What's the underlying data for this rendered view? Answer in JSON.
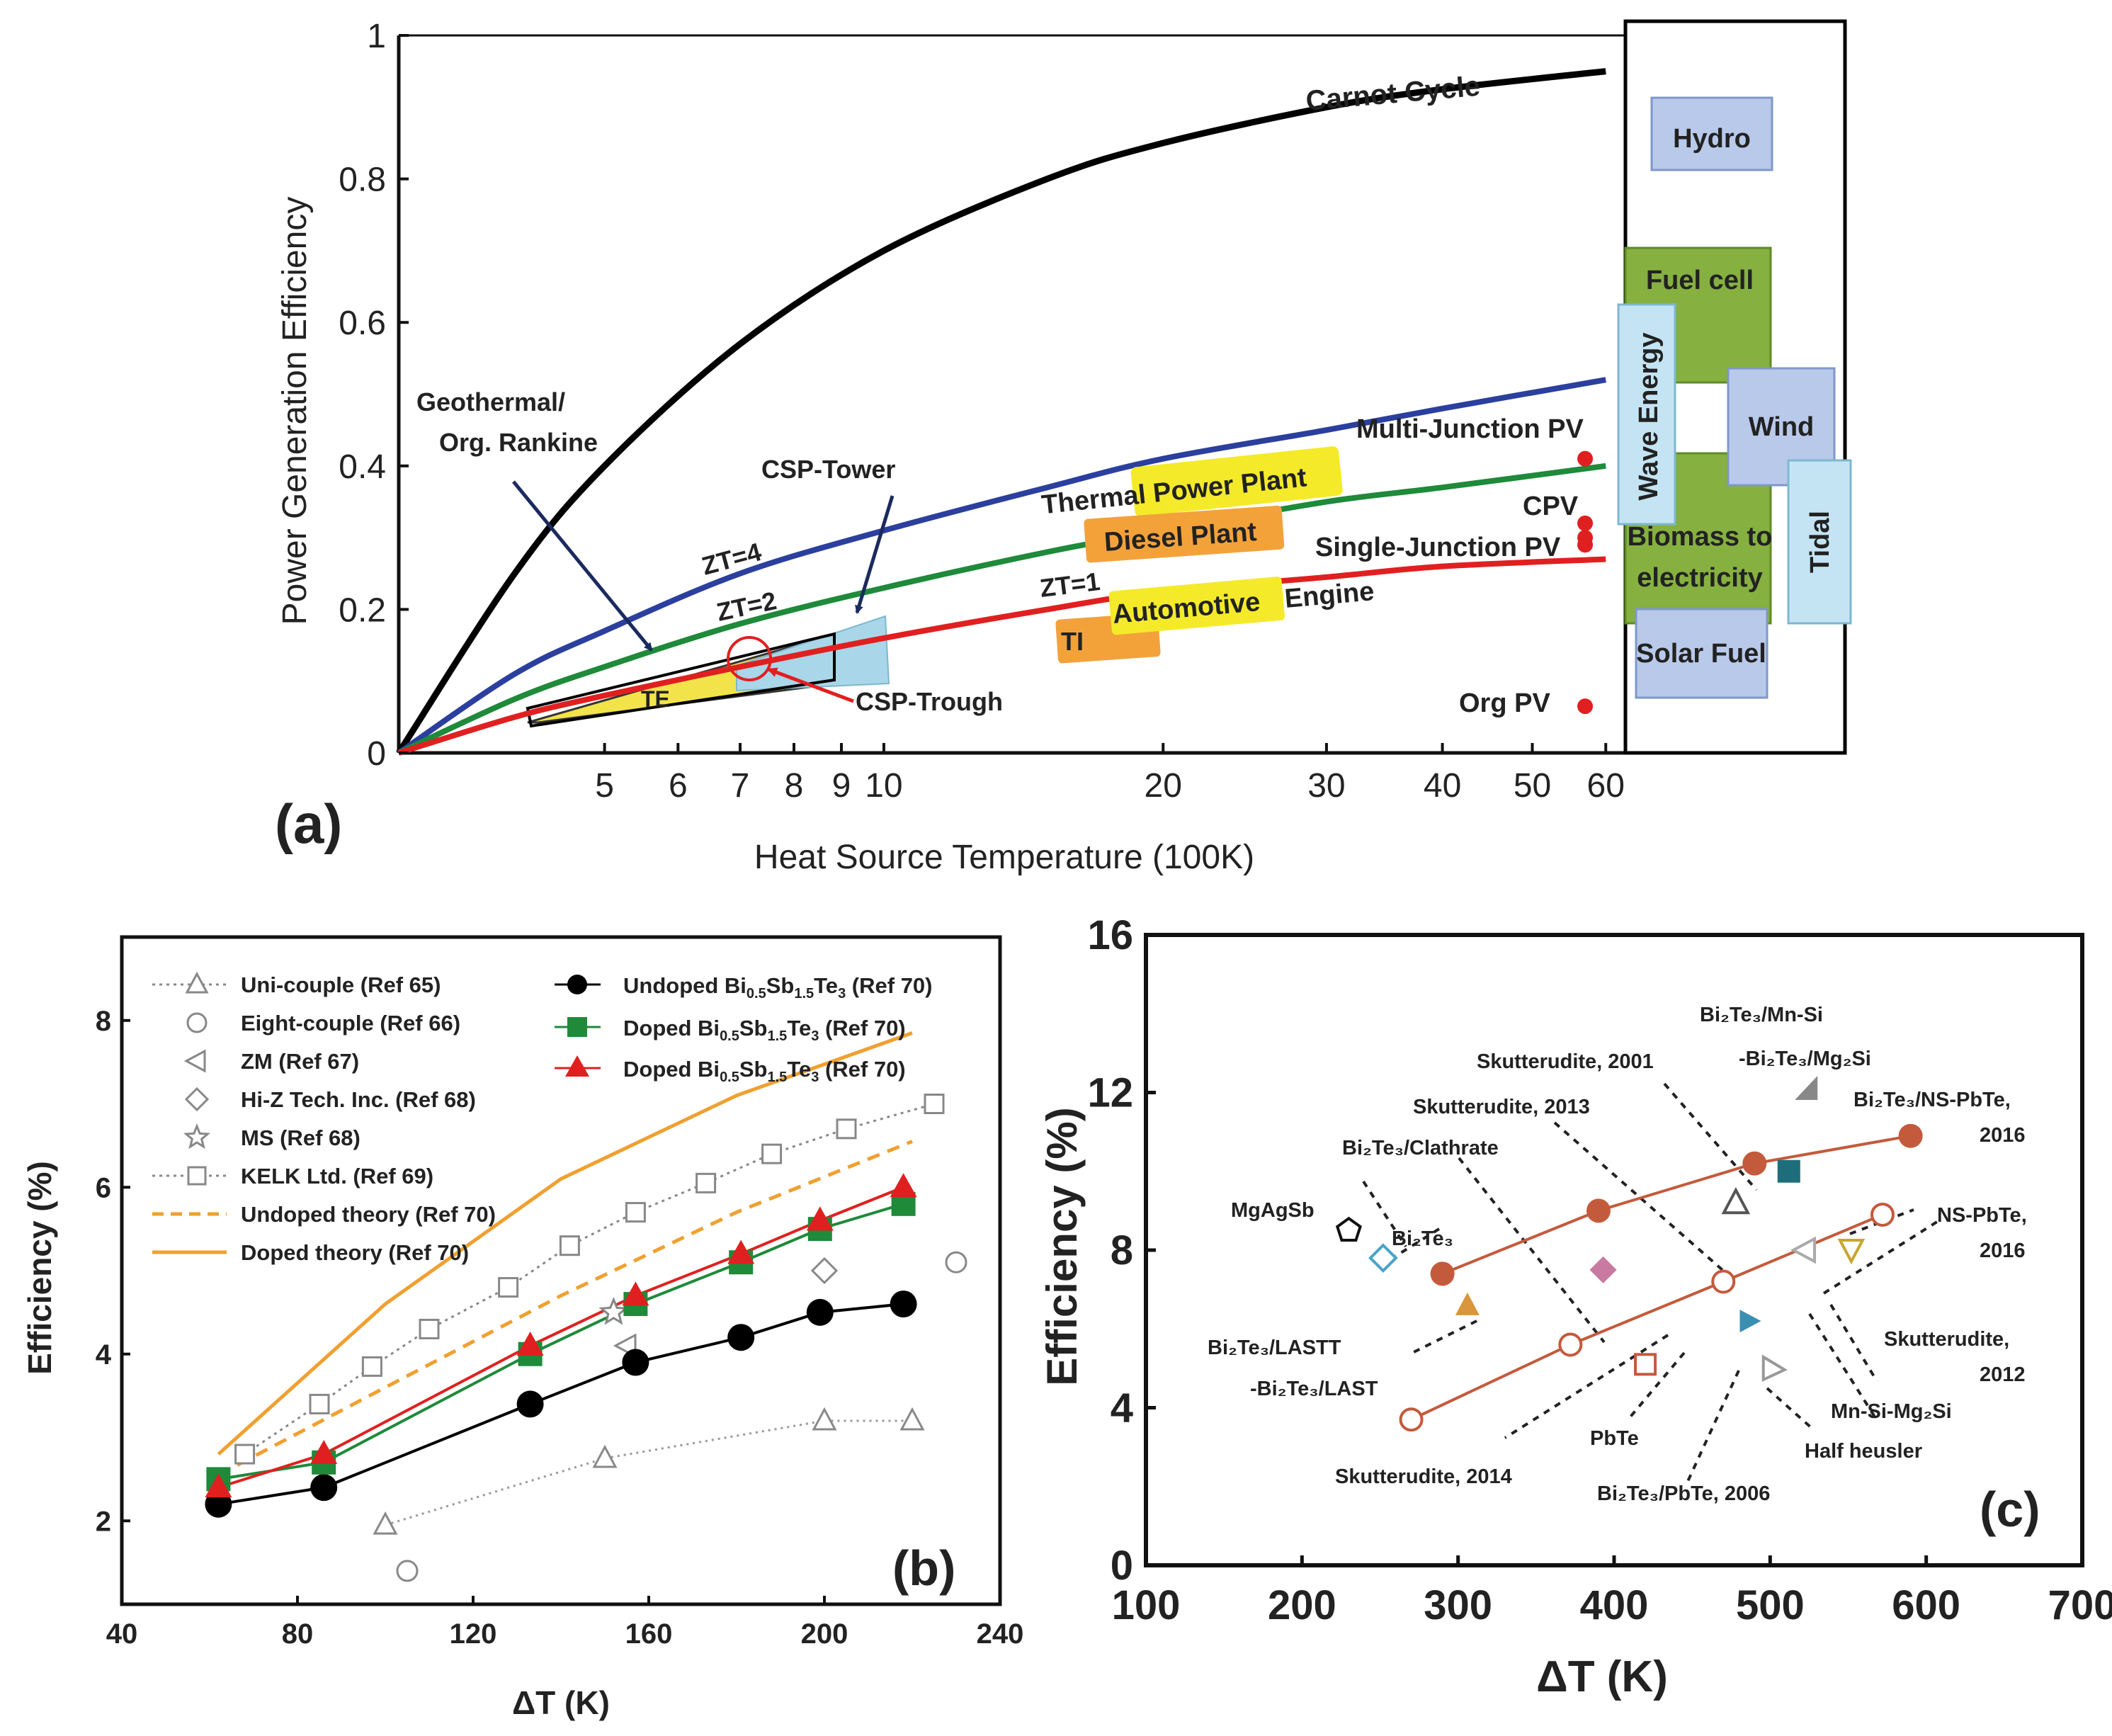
{
  "chart_data": [
    {
      "type": "line",
      "panel_label": "(a)",
      "xlabel": "Heat Source Temperature (100K)",
      "ylabel": "Power Generation Efficiency",
      "xscale": "log",
      "xlim": [
        3,
        63
      ],
      "ylim": [
        0,
        1
      ],
      "x_ticks": [
        "5",
        "6",
        "7",
        "8",
        "9",
        "10",
        "20",
        "30",
        "40",
        "50",
        "60"
      ],
      "y_ticks": [
        "0",
        "0.2",
        "0.4",
        "0.6",
        "0.8",
        "1"
      ],
      "series": [
        {
          "name": "Carnot Cycle",
          "color": "#000000",
          "x": [
            3,
            4,
            5,
            7,
            10,
            15,
            20,
            30,
            40,
            60
          ],
          "y": [
            0,
            0.25,
            0.4,
            0.57,
            0.7,
            0.8,
            0.85,
            0.9,
            0.925,
            0.95
          ]
        },
        {
          "name": "ZT=4",
          "color": "#2b3f9e",
          "x": [
            3,
            4,
            5,
            7,
            10,
            15,
            20,
            30,
            40,
            60
          ],
          "y": [
            0,
            0.11,
            0.17,
            0.25,
            0.31,
            0.37,
            0.41,
            0.45,
            0.48,
            0.52
          ]
        },
        {
          "name": "ZT=2",
          "color": "#1e8a3a",
          "x": [
            3,
            4,
            5,
            7,
            10,
            15,
            20,
            30,
            40,
            60
          ],
          "y": [
            0,
            0.075,
            0.12,
            0.18,
            0.23,
            0.28,
            0.31,
            0.35,
            0.37,
            0.4
          ]
        },
        {
          "name": "ZT=1",
          "color": "#e02020",
          "x": [
            3,
            4,
            5,
            7,
            10,
            15,
            20,
            30,
            40,
            60
          ],
          "y": [
            0,
            0.05,
            0.08,
            0.12,
            0.16,
            0.2,
            0.225,
            0.245,
            0.26,
            0.27
          ]
        }
      ],
      "points": [
        {
          "label": "Multi-Junction PV",
          "x": 57,
          "y": 0.41
        },
        {
          "label": "CPV",
          "x": 57,
          "y": 0.32
        },
        {
          "label": "CPV",
          "x": 57,
          "y": 0.3
        },
        {
          "label": "Single-Junction PV",
          "x": 57,
          "y": 0.29
        },
        {
          "label": "Org PV",
          "x": 57,
          "y": 0.065
        }
      ],
      "labels": {
        "carnot": "Carnot Cycle",
        "zt4": "ZT=4",
        "zt2": "ZT=2",
        "zt1": "ZT=1",
        "geo1": "Geothermal/",
        "geo2": "Org. Rankine",
        "csp_tower": "CSP-Tower",
        "csp_trough": "CSP-Trough",
        "te": "TE",
        "thermal": "Thermal Power Plant",
        "diesel": "Diesel Plant",
        "ti": "TI",
        "auto1": "Automotive",
        "auto2": "Engine",
        "mj_pv": "Multi-Junction PV",
        "cpv": "CPV",
        "sj_pv": "Single-Junction PV",
        "org_pv": "Org PV"
      },
      "side_boxes": {
        "hydro": "Hydro",
        "fuel_cell": "Fuel cell",
        "wave": "Wave Energy",
        "wind": "Wind",
        "biomass1": "Biomass to",
        "biomass2": "electricity",
        "tidal": "Tidal",
        "solar_fuel": "Solar Fuel"
      }
    },
    {
      "type": "line",
      "panel_label": "(b)",
      "xlabel": "ΔT (K)",
      "ylabel": "Efficiency (%)",
      "xlim": [
        40,
        240
      ],
      "ylim": [
        1,
        9
      ],
      "x_ticks": [
        "40",
        "80",
        "120",
        "160",
        "200",
        "240"
      ],
      "y_ticks": [
        "2",
        "4",
        "6",
        "8"
      ],
      "series": [
        {
          "name": "Uni-couple (Ref 65)",
          "marker": "triangle",
          "x": [
            100,
            150,
            200,
            220
          ],
          "y": [
            1.95,
            2.75,
            3.2,
            3.2
          ]
        },
        {
          "name": "Eight-couple (Ref 66)",
          "marker": "circle-open",
          "x": [
            105,
            230
          ],
          "y": [
            1.4,
            5.1
          ]
        },
        {
          "name": "ZM (Ref 67)",
          "marker": "triangle-left",
          "x": [
            155
          ],
          "y": [
            4.1
          ]
        },
        {
          "name": "Hi-Z Tech. Inc. (Ref 68)",
          "marker": "diamond",
          "x": [
            200
          ],
          "y": [
            5.0
          ]
        },
        {
          "name": "MS (Ref 68)",
          "marker": "star",
          "x": [
            152
          ],
          "y": [
            4.5
          ]
        },
        {
          "name": "KELK Ltd. (Ref 69)",
          "marker": "square-open",
          "x": [
            68,
            85,
            97,
            110,
            128,
            142,
            157,
            173,
            188,
            205,
            225
          ],
          "y": [
            2.8,
            3.4,
            3.85,
            4.3,
            4.8,
            5.3,
            5.7,
            6.05,
            6.4,
            6.7,
            7.0
          ]
        },
        {
          "name": "Undoped theory (Ref 70)",
          "style": "dashed",
          "x": [
            62,
            100,
            140,
            180,
            220
          ],
          "y": [
            2.55,
            3.6,
            4.7,
            5.7,
            6.55
          ]
        },
        {
          "name": "Doped theory (Ref 70)",
          "style": "solid-orange",
          "x": [
            62,
            100,
            140,
            180,
            220
          ],
          "y": [
            2.8,
            4.6,
            6.1,
            7.1,
            7.85
          ]
        },
        {
          "name": "Undoped Bi0.5Sb1.5Te3 (Ref 70)",
          "marker": "circle-filled",
          "x": [
            62,
            86,
            133,
            157,
            181,
            199,
            218
          ],
          "y": [
            2.2,
            2.4,
            3.4,
            3.9,
            4.2,
            4.5,
            4.6
          ]
        },
        {
          "name": "Doped Bi0.5Sb1.5Te3 (Ref 70)",
          "marker": "square-green",
          "x": [
            62,
            86,
            133,
            157,
            181,
            199,
            218
          ],
          "y": [
            2.5,
            2.7,
            4.0,
            4.6,
            5.1,
            5.5,
            5.8
          ]
        },
        {
          "name": "Doped Bi0.5Sb1.5Te3 (Ref 70)",
          "marker": "triangle-red",
          "x": [
            62,
            86,
            133,
            157,
            181,
            199,
            218
          ],
          "y": [
            2.4,
            2.8,
            4.1,
            4.7,
            5.2,
            5.6,
            6.0
          ]
        }
      ],
      "legend_left": [
        "Uni-couple (Ref 65)",
        "Eight-couple (Ref 66)",
        "ZM (Ref 67)",
        "Hi-Z Tech. Inc. (Ref 68)",
        "MS (Ref 68)",
        "KELK Ltd. (Ref 69)",
        "Undoped theory (Ref 70)",
        "Doped theory (Ref 70)"
      ],
      "legend_right": [
        {
          "pre": "Undoped Bi",
          "s1": "0.5",
          "m": "Sb",
          "s2": "1.5",
          "e": "Te",
          "s3": "3",
          "post": " (Ref 70)"
        },
        {
          "pre": "Doped Bi",
          "s1": "0.5",
          "m": "Sb",
          "s2": "1.5",
          "e": "Te",
          "s3": "3",
          "post": " (Ref 70)"
        },
        {
          "pre": "Doped Bi",
          "s1": "0.5",
          "m": "Sb",
          "s2": "1.5",
          "e": "Te",
          "s3": "3",
          "post": " (Ref 70)"
        }
      ]
    },
    {
      "type": "scatter",
      "panel_label": "(c)",
      "xlabel": "ΔT (K)",
      "ylabel": "Efficiency (%)",
      "xlim": [
        100,
        700
      ],
      "ylim": [
        0,
        16
      ],
      "x_ticks": [
        "100",
        "200",
        "300",
        "400",
        "500",
        "600",
        "700"
      ],
      "y_ticks": [
        "0",
        "4",
        "8",
        "12",
        "16"
      ],
      "series": [
        {
          "name": "filled-circle line",
          "x": [
            290,
            390,
            490,
            590
          ],
          "y": [
            7.4,
            9.0,
            10.2,
            10.9
          ]
        },
        {
          "name": "open-circle line",
          "x": [
            270,
            372,
            470,
            572
          ],
          "y": [
            3.7,
            5.6,
            7.2,
            8.9
          ]
        }
      ],
      "points": [
        {
          "label": "MgAgSb",
          "marker": "pentagon",
          "x": 230,
          "y": 8.5
        },
        {
          "label": "Bi2Te3",
          "marker": "diamond-open",
          "x": 252,
          "y": 7.8
        },
        {
          "label": "Bi2Te3/LASTT -Bi2Te3/LAST",
          "marker": "triangle-orange",
          "x": 306,
          "y": 6.6
        },
        {
          "label": "Bi2Te3/Clathrate",
          "marker": "diamond-pink",
          "x": 393,
          "y": 7.5
        },
        {
          "label": "PbTe",
          "marker": "square-open-red",
          "x": 420,
          "y": 5.1
        },
        {
          "label": "Skutterudite, 2013",
          "marker": "triangle-open",
          "x": 478,
          "y": 9.2
        },
        {
          "label": "Bi2Te3/PbTe, 2006",
          "marker": "triangle-teal",
          "x": 486,
          "y": 6.2
        },
        {
          "label": "Skutterudite, 2001",
          "marker": "square-teal",
          "x": 512,
          "y": 10.0
        },
        {
          "label": "Bi2Te3/Mn-Si -Bi2Te3/Mg2Si",
          "marker": "triangle-gray",
          "x": 524,
          "y": 12.1
        },
        {
          "label": "Mn-Si-Mg2Si",
          "marker": "triangle-open-left",
          "x": 523,
          "y": 8.0
        },
        {
          "label": "Skutterudite, 2012",
          "marker": "triangle-down-gold",
          "x": 552,
          "y": 8.0
        },
        {
          "label": "Half heusler",
          "marker": "triangle-open-right",
          "x": 502,
          "y": 5.0
        }
      ],
      "annotations": {
        "mgagsb": "MgAgSb",
        "bite": "Bi₂Te₃",
        "lastt1": "Bi₂Te₃/LASTT",
        "lastt2": "-Bi₂Te₃/LAST",
        "clath": "Bi₂Te₃/Clathrate",
        "sk2013": "Skutterudite, 2013",
        "sk2001": "Skutterudite, 2001",
        "mnsi1": "Bi₂Te₃/Mn-Si",
        "mnsi2": "-Bi₂Te₃/Mg₂Si",
        "nspbte1a": "Bi₂Te₃/NS-PbTe,",
        "nspbte1b": "2016",
        "nspbte2a": "NS-PbTe,",
        "nspbte2b": "2016",
        "sk2012a": "Skutterudite,",
        "sk2012b": "2012",
        "mnsimg": "Mn-Si-Mg₂Si",
        "halfh": "Half heusler",
        "pbte": "PbTe",
        "bipbte": "Bi₂Te₃/PbTe, 2006",
        "sk2014": "Skutterudite, 2014"
      }
    }
  ]
}
